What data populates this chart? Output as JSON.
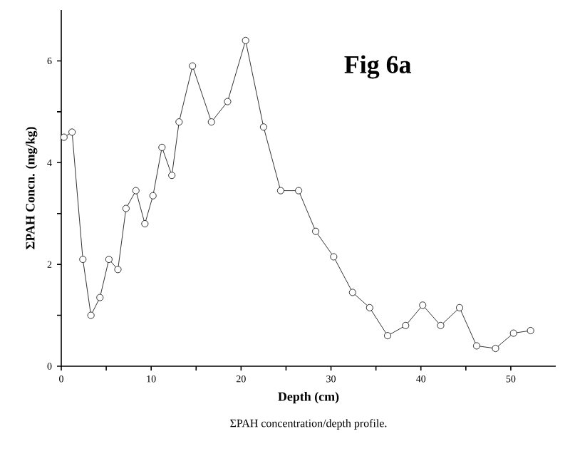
{
  "chart_data": {
    "type": "line",
    "title": "Fig 6a",
    "xlabel": "Depth (cm)",
    "ylabel": "ΣPAH Concn. (mg/kg)",
    "annotations": [
      "ΣPAH concentration/depth profile."
    ],
    "x": [
      0.3,
      1.2,
      2.4,
      3.3,
      4.3,
      5.3,
      6.3,
      7.2,
      8.3,
      9.3,
      10.2,
      11.2,
      12.3,
      13.1,
      14.6,
      16.7,
      18.5,
      20.5,
      22.5,
      24.4,
      26.4,
      28.3,
      30.3,
      32.4,
      34.3,
      36.3,
      38.3,
      40.2,
      42.2,
      44.3,
      46.2,
      48.3,
      50.3,
      52.2
    ],
    "series": [
      {
        "color": "#000000",
        "values": [
          4.5,
          4.6,
          2.1,
          1.0,
          1.35,
          2.1,
          1.9,
          3.1,
          3.45,
          2.8,
          3.35,
          4.3,
          3.75,
          4.8,
          5.9,
          4.8,
          5.2,
          6.4,
          4.7,
          3.45,
          3.45,
          2.65,
          2.15,
          1.45,
          1.15,
          0.6,
          0.8,
          1.2,
          0.8,
          1.15,
          0.4,
          0.35,
          0.65,
          0.7
        ]
      }
    ],
    "xlim": [
      0,
      55
    ],
    "ylim": [
      0,
      7
    ],
    "xticks": [
      0,
      {
        "value": 5,
        "label": null
      },
      10,
      {
        "value": 15,
        "label": null
      },
      20,
      {
        "value": 25,
        "label": null
      },
      30,
      {
        "value": 35,
        "label": null
      },
      40,
      {
        "value": 45,
        "label": null
      },
      50
    ],
    "yticks": [
      0,
      {
        "value": 1,
        "label": null
      },
      2,
      {
        "value": 3,
        "label": null
      },
      4,
      {
        "value": 5,
        "label": null
      },
      6
    ],
    "marker": "circle",
    "line_style": "solid"
  }
}
